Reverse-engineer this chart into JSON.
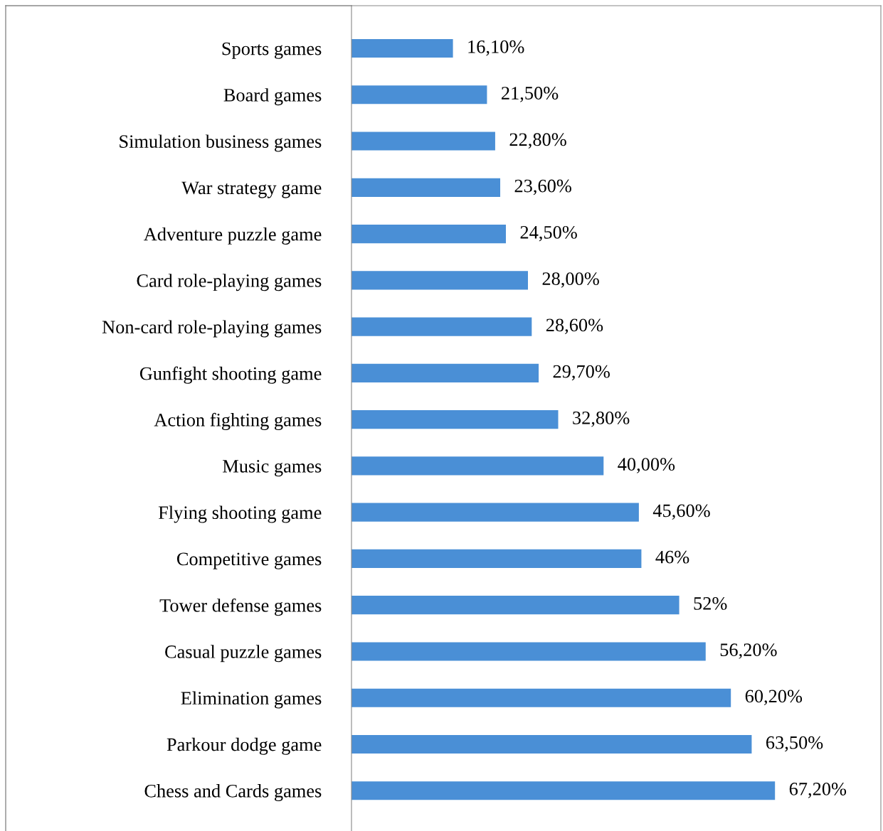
{
  "chart_data": {
    "type": "bar",
    "orientation": "horizontal",
    "tick_labels": "y",
    "grid": false,
    "legend": false,
    "categories": [
      "Sports games",
      "Board games",
      "Simulation business games",
      "War strategy game",
      "Adventure puzzle game",
      "Card role-playing games",
      "Non-card role-playing games",
      "Gunfight shooting game",
      "Action fighting games",
      "Music games",
      "Flying shooting game",
      "Competitive games",
      "Tower defense games",
      "Casual puzzle games",
      "Elimination games",
      "Parkour dodge game",
      "Chess and Cards games"
    ],
    "values": [
      16.1,
      21.5,
      22.8,
      23.6,
      24.5,
      28.0,
      28.6,
      29.7,
      32.8,
      40.0,
      45.6,
      46,
      52,
      56.2,
      60.2,
      63.5,
      67.2
    ],
    "value_labels": [
      "16,10%",
      "21,50%",
      "22,80%",
      "23,60%",
      "24,50%",
      "28,00%",
      "28,60%",
      "29,70%",
      "32,80%",
      "40,00%",
      "45,60%",
      "46%",
      "52%",
      "56,20%",
      "60,20%",
      "63,50%",
      "67,20%"
    ],
    "color": "#4a8fd6",
    "xlim": [
      0,
      84
    ]
  }
}
